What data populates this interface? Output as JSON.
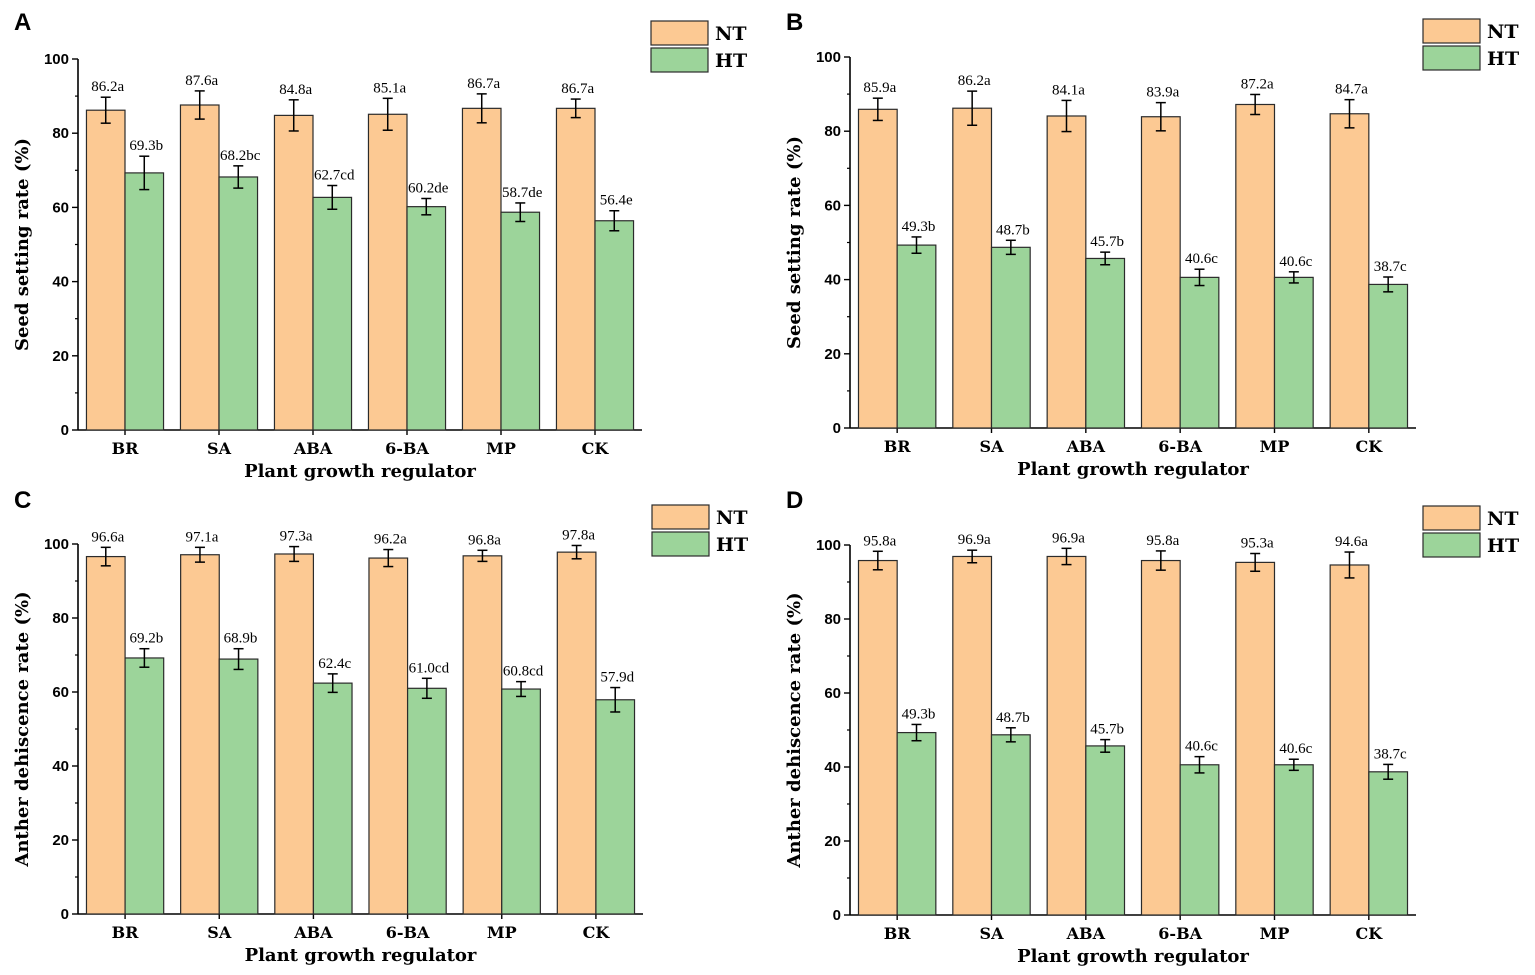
{
  "colors": {
    "nt": "#FCC993",
    "ht": "#9CD49A",
    "stroke": "#2b2b2b"
  },
  "legend": {
    "nt": "NT",
    "ht": "HT"
  },
  "chart_data": [
    {
      "panel": "A",
      "type": "bar",
      "xlabel": "Plant growth regulator",
      "ylabel": "Seed setting rate (%)",
      "ylim": [
        0,
        100
      ],
      "yticks": [
        0,
        20,
        40,
        60,
        80,
        100
      ],
      "categories": [
        "BR",
        "SA",
        "ABA",
        "6-BA",
        "MP",
        "CK"
      ],
      "series": [
        {
          "name": "NT",
          "values": [
            86.2,
            87.6,
            84.8,
            85.1,
            86.7,
            86.7
          ],
          "labels": [
            "86.2a",
            "87.6a",
            "84.8a",
            "85.1a",
            "86.7a",
            "86.7a"
          ],
          "errors": [
            3.5,
            3.8,
            4.2,
            4.3,
            3.9,
            2.5
          ]
        },
        {
          "name": "HT",
          "values": [
            69.3,
            68.2,
            62.7,
            60.2,
            58.7,
            56.4
          ],
          "labels": [
            "69.3b",
            "68.2bc",
            "62.7cd",
            "60.2de",
            "58.7de",
            "56.4e"
          ],
          "errors": [
            4.5,
            3.0,
            3.2,
            2.2,
            2.5,
            2.7
          ]
        }
      ]
    },
    {
      "panel": "B",
      "type": "bar",
      "xlabel": "Plant growth regulator",
      "ylabel": "Seed setting rate (%)",
      "ylim": [
        0,
        100
      ],
      "yticks": [
        0,
        20,
        40,
        60,
        80,
        100
      ],
      "categories": [
        "BR",
        "SA",
        "ABA",
        "6-BA",
        "MP",
        "CK"
      ],
      "series": [
        {
          "name": "NT",
          "values": [
            85.9,
            86.2,
            84.1,
            83.9,
            87.2,
            84.7
          ],
          "labels": [
            "85.9a",
            "86.2a",
            "84.1a",
            "83.9a",
            "87.2a",
            "84.7a"
          ],
          "errors": [
            3.0,
            4.6,
            4.2,
            3.8,
            2.7,
            3.8
          ]
        },
        {
          "name": "HT",
          "values": [
            49.3,
            48.7,
            45.7,
            40.6,
            40.6,
            38.7
          ],
          "labels": [
            "49.3b",
            "48.7b",
            "45.7b",
            "40.6c",
            "40.6c",
            "38.7c"
          ],
          "errors": [
            2.2,
            1.9,
            1.7,
            2.2,
            1.5,
            2.0
          ]
        }
      ]
    },
    {
      "panel": "C",
      "type": "bar",
      "xlabel": "Plant growth regulator",
      "ylabel": "Anther dehiscence rate (%)",
      "ylim": [
        0,
        100
      ],
      "yticks": [
        0,
        20,
        40,
        60,
        80,
        100
      ],
      "categories": [
        "BR",
        "SA",
        "ABA",
        "6-BA",
        "MP",
        "CK"
      ],
      "series": [
        {
          "name": "NT",
          "values": [
            96.6,
            97.1,
            97.3,
            96.2,
            96.8,
            97.8
          ],
          "labels": [
            "96.6a",
            "97.1a",
            "97.3a",
            "96.2a",
            "96.8a",
            "97.8a"
          ],
          "errors": [
            2.5,
            2.0,
            2.0,
            2.3,
            1.5,
            1.8
          ]
        },
        {
          "name": "HT",
          "values": [
            69.2,
            68.9,
            62.4,
            61.0,
            60.8,
            57.9
          ],
          "labels": [
            "69.2b",
            "68.9b",
            "62.4c",
            "61.0cd",
            "60.8cd",
            "57.9d"
          ],
          "errors": [
            2.5,
            2.8,
            2.5,
            2.7,
            2.0,
            3.3
          ]
        }
      ]
    },
    {
      "panel": "D",
      "type": "bar",
      "xlabel": "Plant growth regulator",
      "ylabel": "Anther dehiscence rate (%)",
      "ylim": [
        0,
        100
      ],
      "yticks": [
        0,
        20,
        40,
        60,
        80,
        100
      ],
      "categories": [
        "BR",
        "SA",
        "ABA",
        "6-BA",
        "MP",
        "CK"
      ],
      "series": [
        {
          "name": "NT",
          "values": [
            95.8,
            96.9,
            96.9,
            95.8,
            95.3,
            94.6
          ],
          "labels": [
            "95.8a",
            "96.9a",
            "96.9a",
            "95.8a",
            "95.3a",
            "94.6a"
          ],
          "errors": [
            2.5,
            1.7,
            2.2,
            2.6,
            2.4,
            3.5
          ]
        },
        {
          "name": "HT",
          "values": [
            49.3,
            48.7,
            45.7,
            40.6,
            40.6,
            38.7
          ],
          "labels": [
            "49.3b",
            "48.7b",
            "45.7b",
            "40.6c",
            "40.6c",
            "38.7c"
          ],
          "errors": [
            2.2,
            1.9,
            1.7,
            2.2,
            1.5,
            2.0
          ]
        }
      ]
    }
  ]
}
